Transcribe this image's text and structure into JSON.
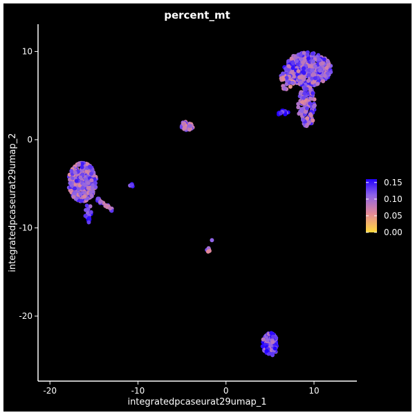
{
  "chart_data": {
    "type": "scatter",
    "title": "percent_mt",
    "xlabel": "integratedpcaseurat29umap_1",
    "ylabel": "integratedpcaseurat29umap_2",
    "xlim": [
      -20.8,
      14.4
    ],
    "ylim": [
      -26.9,
      12.7
    ],
    "x_ticks": [
      -20,
      -10,
      0,
      10
    ],
    "y_ticks": [
      -20,
      -10,
      0,
      10
    ],
    "x_tick_labels": [
      "-20",
      "-10",
      "0",
      "10"
    ],
    "y_tick_labels": [
      "-20",
      "-10",
      "0",
      "10"
    ],
    "background": "#000000",
    "axis_color": "#ffffff",
    "legend": {
      "position": "right",
      "min": 0.0,
      "max": 0.16,
      "ticks": [
        0.0,
        0.05,
        0.1,
        0.15
      ],
      "tick_labels": [
        "0.00",
        "0.05",
        "0.10",
        "0.15"
      ],
      "colors": [
        "#FFD93D",
        "#E58A96",
        "#8E63E8",
        "#2200FF"
      ]
    },
    "clusters": [
      {
        "shape": "ellipse",
        "cx": 9.3,
        "cy": 8.0,
        "rx": 2.7,
        "ry": 1.9,
        "n": 420,
        "mean": 0.11
      },
      {
        "shape": "ellipse",
        "cx": 9.2,
        "cy": 3.8,
        "rx": 1.0,
        "ry": 2.3,
        "n": 120,
        "mean": 0.1
      },
      {
        "shape": "ellipse",
        "cx": 7.0,
        "cy": 6.8,
        "rx": 0.8,
        "ry": 1.3,
        "n": 40,
        "mean": 0.09
      },
      {
        "shape": "ellipse",
        "cx": 6.5,
        "cy": 3.0,
        "rx": 0.6,
        "ry": 0.35,
        "n": 12,
        "mean": 0.15
      },
      {
        "shape": "ellipse",
        "cx": -4.4,
        "cy": 1.6,
        "rx": 0.7,
        "ry": 0.5,
        "n": 45,
        "mean": 0.09
      },
      {
        "shape": "ellipse",
        "cx": -16.3,
        "cy": -4.8,
        "rx": 1.6,
        "ry": 2.2,
        "n": 340,
        "mean": 0.1
      },
      {
        "shape": "ellipse",
        "cx": -15.6,
        "cy": -8.3,
        "rx": 0.4,
        "ry": 1.1,
        "n": 20,
        "mean": 0.13
      },
      {
        "shape": "line",
        "x0": -14.8,
        "y0": -6.6,
        "x1": -12.9,
        "y1": -8.0,
        "width": 0.25,
        "n": 25,
        "mean": 0.11
      },
      {
        "shape": "ellipse",
        "cx": -10.8,
        "cy": -5.2,
        "rx": 0.3,
        "ry": 0.18,
        "n": 6,
        "mean": 0.12
      },
      {
        "shape": "ellipse",
        "cx": -2.0,
        "cy": -12.5,
        "rx": 0.18,
        "ry": 0.22,
        "n": 5,
        "mean": 0.08
      },
      {
        "shape": "ellipse",
        "cx": -1.6,
        "cy": -11.4,
        "rx": 0.05,
        "ry": 0.05,
        "n": 1,
        "mean": 0.07
      },
      {
        "shape": "ellipse",
        "cx": 5.0,
        "cy": -23.2,
        "rx": 0.85,
        "ry": 1.3,
        "n": 130,
        "mean": 0.12
      }
    ]
  }
}
